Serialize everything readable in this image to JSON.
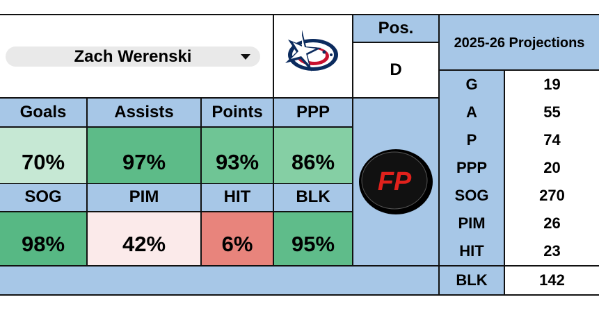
{
  "player": {
    "name": "Zach Werenski",
    "position_label": "Pos.",
    "position": "D",
    "team_logo": "blue-jackets-logo",
    "brand_logo_text": "FP"
  },
  "colors": {
    "header_blue": "#a7c7e7",
    "high": "#5dbb88",
    "mid_high": "#85cfa4",
    "low_green": "#c6e8d4",
    "neutral": "#fbeaea",
    "low": "#e8847c",
    "brand_red": "#e0211c"
  },
  "percentiles": [
    {
      "label": "Goals",
      "value": "70%"
    },
    {
      "label": "Assists",
      "value": "97%"
    },
    {
      "label": "Points",
      "value": "93%"
    },
    {
      "label": "PPP",
      "value": "86%"
    },
    {
      "label": "SOG",
      "value": "98%"
    },
    {
      "label": "PIM",
      "value": "42%"
    },
    {
      "label": "HIT",
      "value": "6%"
    },
    {
      "label": "BLK",
      "value": "95%"
    }
  ],
  "projections": {
    "title": "2025-26 Projections",
    "rows": [
      {
        "label": "G",
        "value": "19"
      },
      {
        "label": "A",
        "value": "55"
      },
      {
        "label": "P",
        "value": "74"
      },
      {
        "label": "PPP",
        "value": "20"
      },
      {
        "label": "SOG",
        "value": "270"
      },
      {
        "label": "PIM",
        "value": "26"
      },
      {
        "label": "HIT",
        "value": "23"
      },
      {
        "label": "BLK",
        "value": "142"
      }
    ]
  }
}
